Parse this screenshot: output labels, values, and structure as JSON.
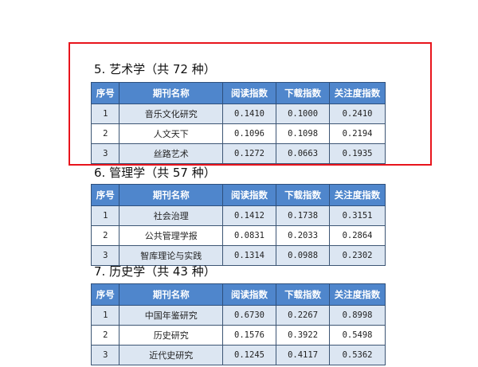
{
  "headers": [
    "序号",
    "期刊名称",
    "阅读指数",
    "下载指数",
    "关注度指数"
  ],
  "sections": [
    {
      "title": "5. 艺术学（共 72 种）",
      "highlighted": true,
      "rows": [
        [
          "1",
          "音乐文化研究",
          "0.1410",
          "0.1000",
          "0.2410"
        ],
        [
          "2",
          "人文天下",
          "0.1096",
          "0.1098",
          "0.2194"
        ],
        [
          "3",
          "丝路艺术",
          "0.1272",
          "0.0663",
          "0.1935"
        ]
      ]
    },
    {
      "title": "6. 管理学（共 57 种）",
      "rows": [
        [
          "1",
          "社会治理",
          "0.1412",
          "0.1738",
          "0.3151"
        ],
        [
          "2",
          "公共管理学报",
          "0.0831",
          "0.2033",
          "0.2864"
        ],
        [
          "3",
          "智库理论与实践",
          "0.1314",
          "0.0988",
          "0.2302"
        ]
      ]
    },
    {
      "title": "7. 历史学（共 43 种）",
      "rows": [
        [
          "1",
          "中国年鉴研究",
          "0.6730",
          "0.2267",
          "0.8998"
        ],
        [
          "2",
          "历史研究",
          "0.1576",
          "0.3922",
          "0.5498"
        ],
        [
          "3",
          "近代史研究",
          "0.1245",
          "0.4117",
          "0.5362"
        ]
      ]
    }
  ],
  "colors": {
    "header_bg": "#4f86cc",
    "row_alt": "#dce6f2",
    "highlight_border": "#e8141c"
  }
}
